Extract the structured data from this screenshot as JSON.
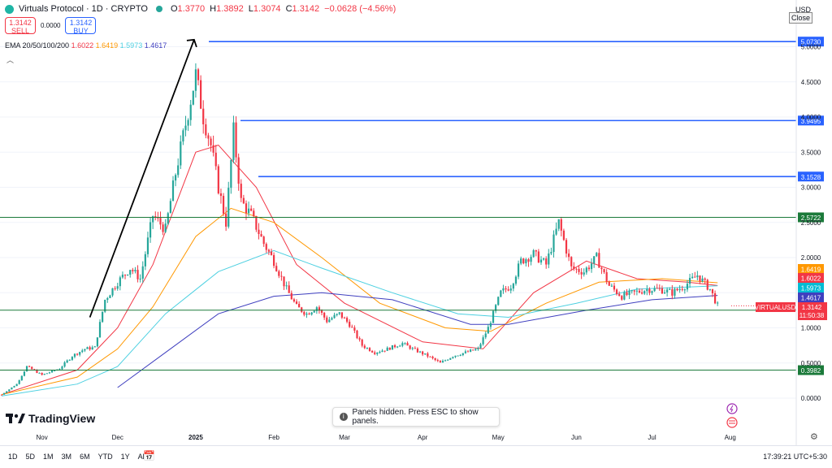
{
  "header": {
    "symbol_title": "Virtuals Protocol · 1D · CRYPTO",
    "ohlc": {
      "o_label": "O",
      "o_value": "1.3770",
      "h_label": "H",
      "h_value": "1.3892",
      "l_label": "L",
      "l_value": "1.3074",
      "c_label": "C",
      "c_value": "1.3142",
      "change": "−0.0628 (−4.56%)"
    }
  },
  "trade": {
    "sell_price": "1.3142",
    "sell_label": "SELL",
    "spread": "0.0000",
    "buy_price": "1.3142",
    "buy_label": "BUY"
  },
  "indicator": {
    "label": "EMA 20/50/100/200",
    "values": [
      "1.6022",
      "1.6419",
      "1.5973",
      "1.4617"
    ]
  },
  "currency": "USD",
  "close_button": "Close",
  "brand": "TradingView",
  "toast": "Panels hidden. Press ESC to show panels.",
  "timeframes": [
    "1D",
    "5D",
    "1M",
    "3M",
    "6M",
    "YTD",
    "1Y",
    "All"
  ],
  "clock": "17:39:21 UTC+5:30",
  "colors": {
    "up": "#26a69a",
    "down": "#f23645",
    "ema20": "#f23645",
    "ema50": "#ff9800",
    "ema100": "#4dd0e1",
    "ema200": "#3f3fbf",
    "hline_blue": "#2962ff",
    "hline_green": "#1b7a3a"
  },
  "chart_data": {
    "type": "candlestick",
    "symbol": "VIRTUALUSD",
    "y_axis_ticks": [
      "0.0000",
      "0.5000",
      "1.0000",
      "1.5000",
      "2.0000",
      "2.5000",
      "3.0000",
      "3.5000",
      "4.0000",
      "4.5000",
      "5.0000"
    ],
    "x_axis_ticks": [
      "Nov",
      "Dec",
      "2025",
      "Feb",
      "Mar",
      "Apr",
      "May",
      "Jun",
      "Jul",
      "Aug"
    ],
    "horizontal_levels": [
      {
        "value": 5.073,
        "label": "5.0730",
        "style": "blue"
      },
      {
        "value": 3.9495,
        "label": "3.9495",
        "style": "blue"
      },
      {
        "value": 3.1528,
        "label": "3.1528",
        "style": "blue"
      },
      {
        "value": 2.5722,
        "label": "2.5722",
        "style": "green"
      },
      {
        "value": 1.2519,
        "label": "1.2519",
        "style": "green"
      },
      {
        "value": 0.3982,
        "label": "0.3982",
        "style": "green"
      }
    ],
    "price_labels": [
      {
        "value": 1.6419,
        "label": "1.6419",
        "color": "#ff9800"
      },
      {
        "value": 1.6022,
        "label": "1.6022",
        "color": "#f23645"
      },
      {
        "value": 1.5973,
        "label": "1.5973",
        "color": "#00bcd4"
      },
      {
        "value": 1.4617,
        "label": "1.4617",
        "color": "#3f3fbf"
      }
    ],
    "last_price": {
      "value": 1.3142,
      "label": "1.3142",
      "countdown": "11:50:38",
      "tag": "VIRTUALUSD"
    },
    "trend_arrow": {
      "from": {
        "date": "2024-11-20",
        "price": 1.15
      },
      "to": {
        "date": "2025-01-01",
        "price": 5.1
      }
    },
    "price_path": [
      [
        "2024-10-16",
        0.05
      ],
      [
        "2024-10-22",
        0.2
      ],
      [
        "2024-10-26",
        0.45
      ],
      [
        "2024-11-01",
        0.33
      ],
      [
        "2024-11-08",
        0.42
      ],
      [
        "2024-11-13",
        0.6
      ],
      [
        "2024-11-18",
        0.7
      ],
      [
        "2024-11-22",
        0.72
      ],
      [
        "2024-11-26",
        1.4
      ],
      [
        "2024-12-01",
        1.65
      ],
      [
        "2024-12-06",
        1.85
      ],
      [
        "2024-12-10",
        1.7
      ],
      [
        "2024-12-15",
        2.6
      ],
      [
        "2024-12-20",
        2.4
      ],
      [
        "2024-12-24",
        3.2
      ],
      [
        "2024-12-28",
        3.9
      ],
      [
        "2025-01-01",
        4.6
      ],
      [
        "2025-01-04",
        4.0
      ],
      [
        "2025-01-07",
        3.6
      ],
      [
        "2025-01-10",
        3.0
      ],
      [
        "2025-01-13",
        2.5
      ],
      [
        "2025-01-16",
        3.8
      ],
      [
        "2025-01-19",
        2.8
      ],
      [
        "2025-01-23",
        2.6
      ],
      [
        "2025-01-28",
        2.2
      ],
      [
        "2025-02-01",
        1.95
      ],
      [
        "2025-02-06",
        1.55
      ],
      [
        "2025-02-10",
        1.3
      ],
      [
        "2025-02-14",
        1.2
      ],
      [
        "2025-02-18",
        1.3
      ],
      [
        "2025-02-22",
        1.1
      ],
      [
        "2025-02-27",
        1.2
      ],
      [
        "2025-03-03",
        1.05
      ],
      [
        "2025-03-08",
        0.75
      ],
      [
        "2025-03-13",
        0.65
      ],
      [
        "2025-03-18",
        0.7
      ],
      [
        "2025-03-24",
        0.78
      ],
      [
        "2025-03-28",
        0.7
      ],
      [
        "2025-04-03",
        0.6
      ],
      [
        "2025-04-08",
        0.5
      ],
      [
        "2025-04-13",
        0.6
      ],
      [
        "2025-04-18",
        0.65
      ],
      [
        "2025-04-23",
        0.7
      ],
      [
        "2025-04-27",
        1.0
      ],
      [
        "2025-05-02",
        1.5
      ],
      [
        "2025-05-06",
        1.6
      ],
      [
        "2025-05-10",
        1.95
      ],
      [
        "2025-05-15",
        2.05
      ],
      [
        "2025-05-20",
        1.9
      ],
      [
        "2025-05-25",
        2.5
      ],
      [
        "2025-05-30",
        1.85
      ],
      [
        "2025-06-04",
        1.8
      ],
      [
        "2025-06-09",
        2.0
      ],
      [
        "2025-06-14",
        1.6
      ],
      [
        "2025-06-19",
        1.45
      ],
      [
        "2025-06-24",
        1.5
      ],
      [
        "2025-06-29",
        1.55
      ],
      [
        "2025-07-04",
        1.55
      ],
      [
        "2025-07-09",
        1.5
      ],
      [
        "2025-07-14",
        1.6
      ],
      [
        "2025-07-19",
        1.75
      ],
      [
        "2025-07-24",
        1.55
      ],
      [
        "2025-07-27",
        1.3142
      ]
    ],
    "ema_paths": {
      "ema20": [
        [
          "2024-10-16",
          0.05
        ],
        [
          "2024-11-15",
          0.4
        ],
        [
          "2024-12-01",
          1.0
        ],
        [
          "2024-12-15",
          1.9
        ],
        [
          "2025-01-01",
          3.5
        ],
        [
          "2025-01-10",
          3.6
        ],
        [
          "2025-01-25",
          3.0
        ],
        [
          "2025-02-10",
          1.9
        ],
        [
          "2025-03-01",
          1.35
        ],
        [
          "2025-04-01",
          0.8
        ],
        [
          "2025-04-25",
          0.7
        ],
        [
          "2025-05-15",
          1.5
        ],
        [
          "2025-06-05",
          1.95
        ],
        [
          "2025-06-25",
          1.7
        ],
        [
          "2025-07-15",
          1.65
        ],
        [
          "2025-07-27",
          1.6022
        ]
      ],
      "ema50": [
        [
          "2024-10-16",
          0.05
        ],
        [
          "2024-11-15",
          0.3
        ],
        [
          "2024-12-01",
          0.7
        ],
        [
          "2024-12-15",
          1.3
        ],
        [
          "2025-01-01",
          2.3
        ],
        [
          "2025-01-15",
          2.7
        ],
        [
          "2025-02-01",
          2.5
        ],
        [
          "2025-02-20",
          2.0
        ],
        [
          "2025-03-15",
          1.35
        ],
        [
          "2025-04-10",
          1.0
        ],
        [
          "2025-04-28",
          0.95
        ],
        [
          "2025-05-20",
          1.35
        ],
        [
          "2025-06-10",
          1.65
        ],
        [
          "2025-07-05",
          1.7
        ],
        [
          "2025-07-27",
          1.6419
        ]
      ],
      "ema100": [
        [
          "2024-10-16",
          0.03
        ],
        [
          "2024-11-15",
          0.2
        ],
        [
          "2024-12-01",
          0.45
        ],
        [
          "2024-12-20",
          1.2
        ],
        [
          "2025-01-10",
          1.8
        ],
        [
          "2025-02-01",
          2.1
        ],
        [
          "2025-02-20",
          1.85
        ],
        [
          "2025-03-20",
          1.5
        ],
        [
          "2025-04-15",
          1.2
        ],
        [
          "2025-05-05",
          1.15
        ],
        [
          "2025-06-01",
          1.35
        ],
        [
          "2025-06-25",
          1.55
        ],
        [
          "2025-07-27",
          1.5973
        ]
      ],
      "ema200": [
        [
          "2024-12-01",
          0.15
        ],
        [
          "2024-12-20",
          0.65
        ],
        [
          "2025-01-10",
          1.2
        ],
        [
          "2025-02-01",
          1.45
        ],
        [
          "2025-02-20",
          1.5
        ],
        [
          "2025-03-20",
          1.4
        ],
        [
          "2025-04-20",
          1.05
        ],
        [
          "2025-05-05",
          1.05
        ],
        [
          "2025-06-05",
          1.25
        ],
        [
          "2025-07-01",
          1.4
        ],
        [
          "2025-07-27",
          1.4617
        ]
      ]
    }
  }
}
